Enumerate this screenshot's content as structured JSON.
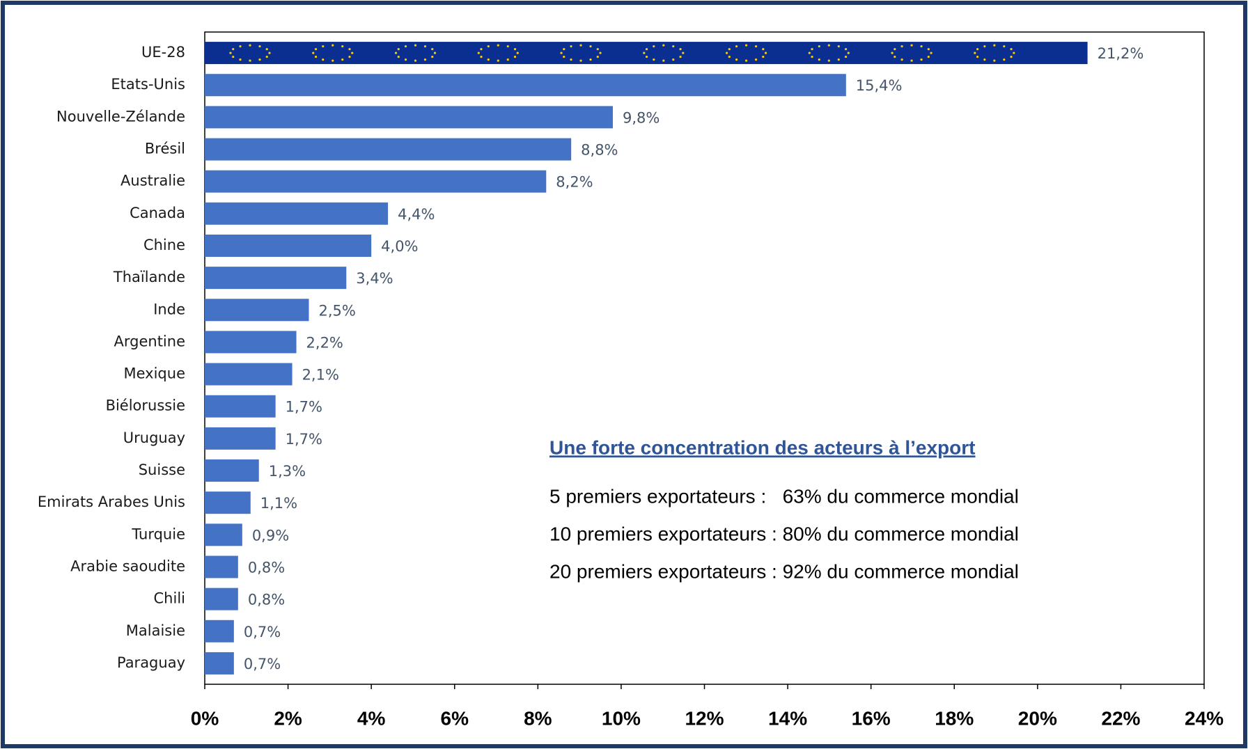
{
  "chart_data": {
    "type": "barh",
    "categories": [
      "UE-28",
      "Etats-Unis",
      "Nouvelle-Zélande",
      "Brésil",
      "Australie",
      "Canada",
      "Chine",
      "Thaïlande",
      "Inde",
      "Argentine",
      "Mexique",
      "Biélorussie",
      "Uruguay",
      "Suisse",
      "Emirats Arabes Unis",
      "Turquie",
      "Arabie saoudite",
      "Chili",
      "Malaisie",
      "Paraguay"
    ],
    "values": [
      21.2,
      15.4,
      9.8,
      8.8,
      8.2,
      4.4,
      4.0,
      3.4,
      2.5,
      2.2,
      2.1,
      1.7,
      1.7,
      1.3,
      1.1,
      0.9,
      0.8,
      0.8,
      0.7,
      0.7
    ],
    "value_labels": [
      "21,2%",
      "15,4%",
      "9,8%",
      "8,8%",
      "8,2%",
      "4,4%",
      "4,0%",
      "3,4%",
      "2,5%",
      "2,2%",
      "2,1%",
      "1,7%",
      "1,7%",
      "1,3%",
      "1,1%",
      "0,9%",
      "0,8%",
      "0,8%",
      "0,7%",
      "0,7%"
    ],
    "colors": [
      "#0b2f91",
      "#4472c4",
      "#4472c4",
      "#4472c4",
      "#4472c4",
      "#4472c4",
      "#4472c4",
      "#4472c4",
      "#4472c4",
      "#4472c4",
      "#4472c4",
      "#4472c4",
      "#4472c4",
      "#4472c4",
      "#4472c4",
      "#4472c4",
      "#4472c4",
      "#4472c4",
      "#4472c4",
      "#4472c4"
    ],
    "xlim": [
      0,
      24
    ],
    "xticks": [
      {
        "value": 0,
        "label": "0%"
      },
      {
        "value": 2,
        "label": "2%"
      },
      {
        "value": 4,
        "label": "4%"
      },
      {
        "value": 6,
        "label": "6%"
      },
      {
        "value": 8,
        "label": "8%"
      },
      {
        "value": 10,
        "label": "10%"
      },
      {
        "value": 12,
        "label": "12%"
      },
      {
        "value": 14,
        "label": "14%"
      },
      {
        "value": 16,
        "label": "16%"
      },
      {
        "value": 18,
        "label": "18%"
      },
      {
        "value": 20,
        "label": "20%"
      },
      {
        "value": 22,
        "label": "22%"
      },
      {
        "value": 24,
        "label": "24%"
      }
    ],
    "grid": false,
    "annotation": {
      "title": "Une forte concentration des acteurs à l’export",
      "lines": [
        "5 premiers exportateurs :   63% du commerce mondial",
        "10 premiers exportateurs : 80% du commerce mondial",
        "20 premiers exportateurs : 92% du commerce mondial"
      ]
    }
  }
}
